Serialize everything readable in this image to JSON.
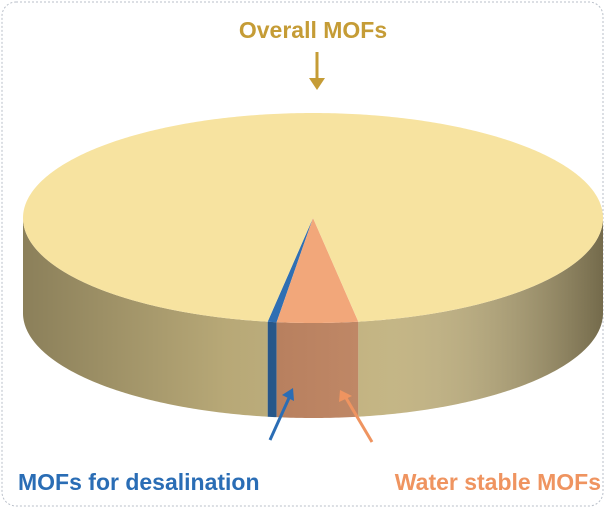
{
  "chart_data": {
    "type": "pie",
    "title": "Overall MOFs",
    "categories": [
      "MOFs for desalination",
      "Water stable MOFs",
      "Overall MOFs"
    ],
    "values": [
      0.5,
      4.5,
      95
    ],
    "colors": [
      "#2f6fb3",
      "#f2a77a",
      "#f7e3a0"
    ],
    "label_colors": [
      "#2a6db5",
      "#ef9460",
      "#c59c36"
    ]
  }
}
